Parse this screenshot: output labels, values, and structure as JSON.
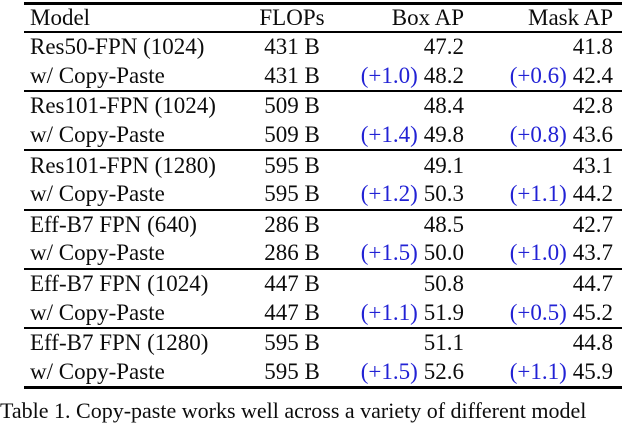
{
  "table": {
    "headers": {
      "model": "Model",
      "flops": "FLOPs",
      "box": "Box AP",
      "mask": "Mask AP"
    },
    "rows": [
      {
        "model": "Res50-FPN (1024)",
        "flops": "431 B",
        "box_delta": "",
        "box": "47.2",
        "mask_delta": "",
        "mask": "41.8"
      },
      {
        "model": "w/ Copy-Paste",
        "flops": "431 B",
        "box_delta": "(+1.0)",
        "box": "48.2",
        "mask_delta": "(+0.6)",
        "mask": "42.4"
      },
      {
        "model": "Res101-FPN (1024)",
        "flops": "509 B",
        "box_delta": "",
        "box": "48.4",
        "mask_delta": "",
        "mask": "42.8"
      },
      {
        "model": "w/ Copy-Paste",
        "flops": "509 B",
        "box_delta": "(+1.4)",
        "box": "49.8",
        "mask_delta": "(+0.8)",
        "mask": "43.6"
      },
      {
        "model": "Res101-FPN (1280)",
        "flops": "595 B",
        "box_delta": "",
        "box": "49.1",
        "mask_delta": "",
        "mask": "43.1"
      },
      {
        "model": "w/ Copy-Paste",
        "flops": "595 B",
        "box_delta": "(+1.2)",
        "box": "50.3",
        "mask_delta": "(+1.1)",
        "mask": "44.2"
      },
      {
        "model": "Eff-B7 FPN (640)",
        "flops": "286 B",
        "box_delta": "",
        "box": "48.5",
        "mask_delta": "",
        "mask": "42.7"
      },
      {
        "model": "w/ Copy-Paste",
        "flops": "286 B",
        "box_delta": "(+1.5)",
        "box": "50.0",
        "mask_delta": "(+1.0)",
        "mask": "43.7"
      },
      {
        "model": "Eff-B7 FPN (1024)",
        "flops": "447 B",
        "box_delta": "",
        "box": "50.8",
        "mask_delta": "",
        "mask": "44.7"
      },
      {
        "model": "w/ Copy-Paste",
        "flops": "447 B",
        "box_delta": "(+1.1)",
        "box": "51.9",
        "mask_delta": "(+0.5)",
        "mask": "45.2"
      },
      {
        "model": "Eff-B7 FPN (1280)",
        "flops": "595 B",
        "box_delta": "",
        "box": "51.1",
        "mask_delta": "",
        "mask": "44.8"
      },
      {
        "model": "w/ Copy-Paste",
        "flops": "595 B",
        "box_delta": "(+1.5)",
        "box": "52.6",
        "mask_delta": "(+1.1)",
        "mask": "45.9"
      }
    ]
  },
  "caption": "Table 1. Copy-paste works well across a variety of different model",
  "colors": {
    "delta_blue": "#2222d5",
    "text": "#0c0c0c",
    "rule": "#000000"
  }
}
